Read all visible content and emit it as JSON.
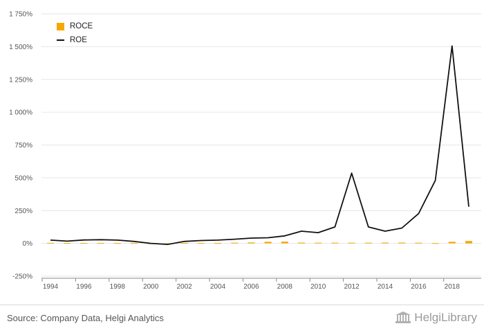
{
  "chart_data": {
    "type": "bar+line",
    "x": [
      1994,
      1995,
      1996,
      1997,
      1998,
      1999,
      2000,
      2001,
      2002,
      2003,
      2004,
      2005,
      2006,
      2007,
      2008,
      2009,
      2010,
      2011,
      2012,
      2013,
      2014,
      2015,
      2016,
      2017,
      2018,
      2019
    ],
    "x_tick_labels": [
      "1994",
      "1996",
      "1998",
      "2000",
      "2002",
      "2004",
      "2006",
      "2008",
      "2010",
      "2012",
      "2014",
      "2016",
      "2018"
    ],
    "y_tick_labels": [
      "-250%",
      "0%",
      "250%",
      "500%",
      "750%",
      "1 000%",
      "1 250%",
      "1 500%",
      "1 750%"
    ],
    "ylim": [
      -250,
      1750
    ],
    "y_ticks": [
      -250,
      0,
      250,
      500,
      750,
      1000,
      1250,
      1500,
      1750
    ],
    "series": [
      {
        "name": "ROCE",
        "type": "bar",
        "color": "#f5a800",
        "values": [
          4,
          3,
          3,
          3,
          3,
          2,
          0,
          -3,
          3,
          3,
          3,
          5,
          7,
          12,
          13,
          6,
          5,
          5,
          5,
          5,
          6,
          6,
          5,
          2,
          12,
          18
        ]
      },
      {
        "name": "ROE",
        "type": "line",
        "color": "#111111",
        "values": [
          25,
          17,
          26,
          28,
          25,
          15,
          0,
          -8,
          15,
          22,
          25,
          32,
          40,
          43,
          57,
          93,
          82,
          125,
          535,
          125,
          93,
          117,
          227,
          480,
          1505,
          280
        ]
      }
    ],
    "grid": true,
    "legend_position": "top-left"
  },
  "footer": {
    "source": "Source: Company Data, Helgi Analytics",
    "brand": "HelgiLibrary"
  },
  "colors": {
    "grid": "#e6e6e6",
    "axis": "#888888"
  }
}
